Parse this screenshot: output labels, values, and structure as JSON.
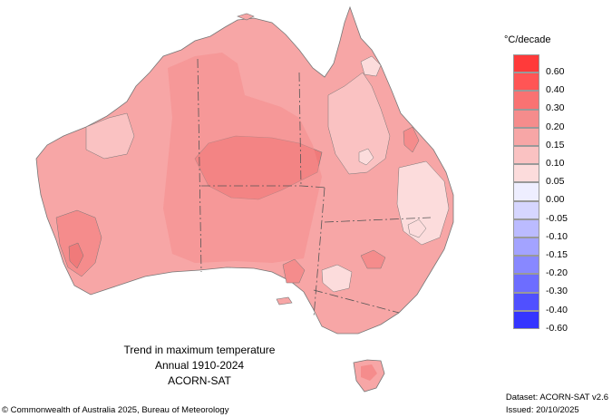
{
  "title": {
    "line1": "Trend in maximum temperature",
    "line2": "Annual 1910-2024",
    "line3": "ACORN-SAT"
  },
  "legend": {
    "unit": "°C/decade",
    "items": [
      {
        "label": "0.60",
        "color": "#ff3a3a"
      },
      {
        "label": "0.40",
        "color": "#ff5555"
      },
      {
        "label": "0.30",
        "color": "#f97272"
      },
      {
        "label": "0.20",
        "color": "#f58c8c"
      },
      {
        "label": "0.15",
        "color": "#f7a6a6"
      },
      {
        "label": "0.10",
        "color": "#fac2c2"
      },
      {
        "label": "0.05",
        "color": "#fcdcdc"
      },
      {
        "label": "0.00",
        "color": "#eeeeff"
      },
      {
        "label": "-0.05",
        "color": "#d6d6ff"
      },
      {
        "label": "-0.10",
        "color": "#bbbbff"
      },
      {
        "label": "-0.15",
        "color": "#a3a3ff"
      },
      {
        "label": "-0.20",
        "color": "#8888ff"
      },
      {
        "label": "-0.30",
        "color": "#6d6dff"
      },
      {
        "label": "-0.40",
        "color": "#5050ff"
      },
      {
        "label": "-0.60",
        "color": "#3535ff"
      }
    ]
  },
  "footer": {
    "copyright": "© Commonwealth of Australia 2025, Bureau of Meteorology",
    "dataset": "Dataset: ACORN-SAT v2.6",
    "issued": "Issued: 20/10/2025"
  }
}
